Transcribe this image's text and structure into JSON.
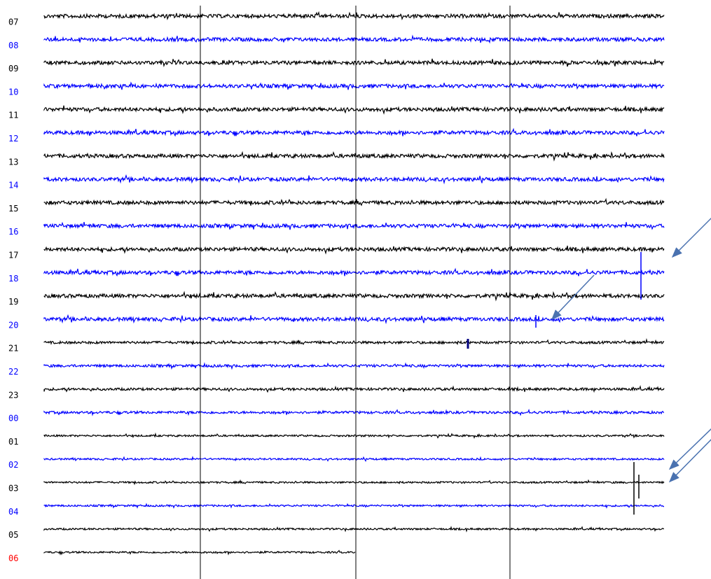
{
  "rows": [
    {
      "label": "07",
      "label_color": "#000000",
      "trace_color": "#000000"
    },
    {
      "label": "08",
      "label_color": "#0000ff",
      "trace_color": "#0000ff"
    },
    {
      "label": "09",
      "label_color": "#000000",
      "trace_color": "#000000"
    },
    {
      "label": "10",
      "label_color": "#0000ff",
      "trace_color": "#0000ff"
    },
    {
      "label": "11",
      "label_color": "#000000",
      "trace_color": "#000000"
    },
    {
      "label": "12",
      "label_color": "#0000ff",
      "trace_color": "#0000ff"
    },
    {
      "label": "13",
      "label_color": "#000000",
      "trace_color": "#000000"
    },
    {
      "label": "14",
      "label_color": "#0000ff",
      "trace_color": "#0000ff"
    },
    {
      "label": "15",
      "label_color": "#000000",
      "trace_color": "#000000"
    },
    {
      "label": "16",
      "label_color": "#0000ff",
      "trace_color": "#0000ff"
    },
    {
      "label": "17",
      "label_color": "#000000",
      "trace_color": "#000000"
    },
    {
      "label": "18",
      "label_color": "#0000ff",
      "trace_color": "#0000ff"
    },
    {
      "label": "19",
      "label_color": "#000000",
      "trace_color": "#000000"
    },
    {
      "label": "20",
      "label_color": "#0000ff",
      "trace_color": "#0000ff"
    },
    {
      "label": "21",
      "label_color": "#000000",
      "trace_color": "#000000"
    },
    {
      "label": "22",
      "label_color": "#0000ff",
      "trace_color": "#0000ff"
    },
    {
      "label": "23",
      "label_color": "#000000",
      "trace_color": "#000000"
    },
    {
      "label": "00",
      "label_color": "#0000ff",
      "trace_color": "#0000ff"
    },
    {
      "label": "01",
      "label_color": "#000000",
      "trace_color": "#000000"
    },
    {
      "label": "02",
      "label_color": "#0000ff",
      "trace_color": "#0000ff"
    },
    {
      "label": "03",
      "label_color": "#000000",
      "trace_color": "#000000"
    },
    {
      "label": "04",
      "label_color": "#0000ff",
      "trace_color": "#0000ff"
    },
    {
      "label": "05",
      "label_color": "#000000",
      "trace_color": "#000000"
    },
    {
      "label": "06",
      "label_color": "#ff0000",
      "trace_color": "#000000"
    }
  ]
}
